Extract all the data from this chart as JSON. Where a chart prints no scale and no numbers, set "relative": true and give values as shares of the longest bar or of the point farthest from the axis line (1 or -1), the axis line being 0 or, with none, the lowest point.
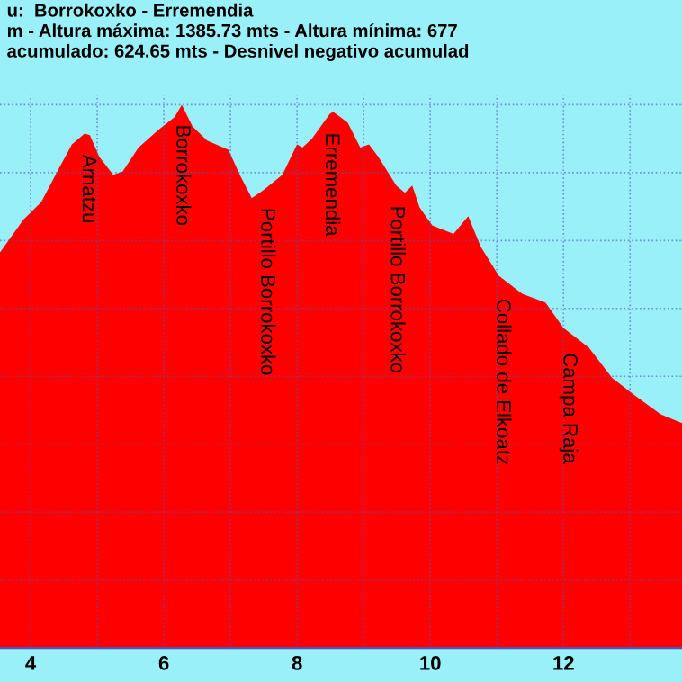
{
  "chart_data": {
    "type": "area",
    "relative": true,
    "title": "u:  Borrokoxko - Erremendia\nm - Altura máxima: 1385.73 mts - Altura mínima: 677\nacumulado: 624.65 mts - Desnivel negativo acumulad",
    "x": [
      3.54,
      3.89,
      4.16,
      4.43,
      4.62,
      4.81,
      4.89,
      5.03,
      5.24,
      5.38,
      5.62,
      5.92,
      6.16,
      6.27,
      6.43,
      6.65,
      6.97,
      7.14,
      7.32,
      7.51,
      7.78,
      8.0,
      8.08,
      8.22,
      8.49,
      8.54,
      8.62,
      8.76,
      8.95,
      9.08,
      9.22,
      9.49,
      9.62,
      9.73,
      9.84,
      10.03,
      10.35,
      10.57,
      10.76,
      11.03,
      11.38,
      11.73,
      12.0,
      12.38,
      12.73,
      13.08,
      13.46,
      13.78
    ],
    "series": [
      {
        "color": "#ff0000",
        "values": [
          0.728,
          0.788,
          0.821,
          0.884,
          0.927,
          0.947,
          0.944,
          0.904,
          0.871,
          0.877,
          0.921,
          0.954,
          0.977,
          1,
          0.96,
          0.934,
          0.917,
          0.871,
          0.828,
          0.844,
          0.871,
          0.927,
          0.921,
          0.937,
          0.983,
          0.987,
          0.98,
          0.967,
          0.921,
          0.927,
          0.904,
          0.851,
          0.838,
          0.851,
          0.811,
          0.778,
          0.762,
          0.795,
          0.738,
          0.685,
          0.652,
          0.636,
          0.589,
          0.553,
          0.497,
          0.464,
          0.43,
          0.414
        ]
      }
    ],
    "xlim": [
      3.54,
      13.78
    ],
    "xticks": [
      4,
      {
        "value": 5,
        "label": null
      },
      6,
      {
        "value": 7,
        "label": null
      },
      8,
      {
        "value": 9,
        "label": null
      },
      10,
      {
        "value": 11,
        "label": null
      },
      12,
      {
        "value": 13,
        "label": null
      }
    ],
    "grid": true,
    "annotations": [
      {
        "text": "Arnatzu",
        "x": 4.86,
        "y": 0.945
      },
      {
        "text": "Borrokoxko",
        "x": 6.27,
        "y": 1
      },
      {
        "text": "Portillo Borrokoxko",
        "x": 7.54,
        "y": 0.847
      },
      {
        "text": "Erremendia",
        "x": 8.51,
        "y": 0.985
      },
      {
        "text": "Portillo Borrokoxko",
        "x": 9.49,
        "y": 0.851
      },
      {
        "text": "Collado de Elkoatz",
        "x": 11.08,
        "y": 0.68
      },
      {
        "text": "Campa Raja",
        "x": 12.08,
        "y": 0.58
      }
    ]
  }
}
